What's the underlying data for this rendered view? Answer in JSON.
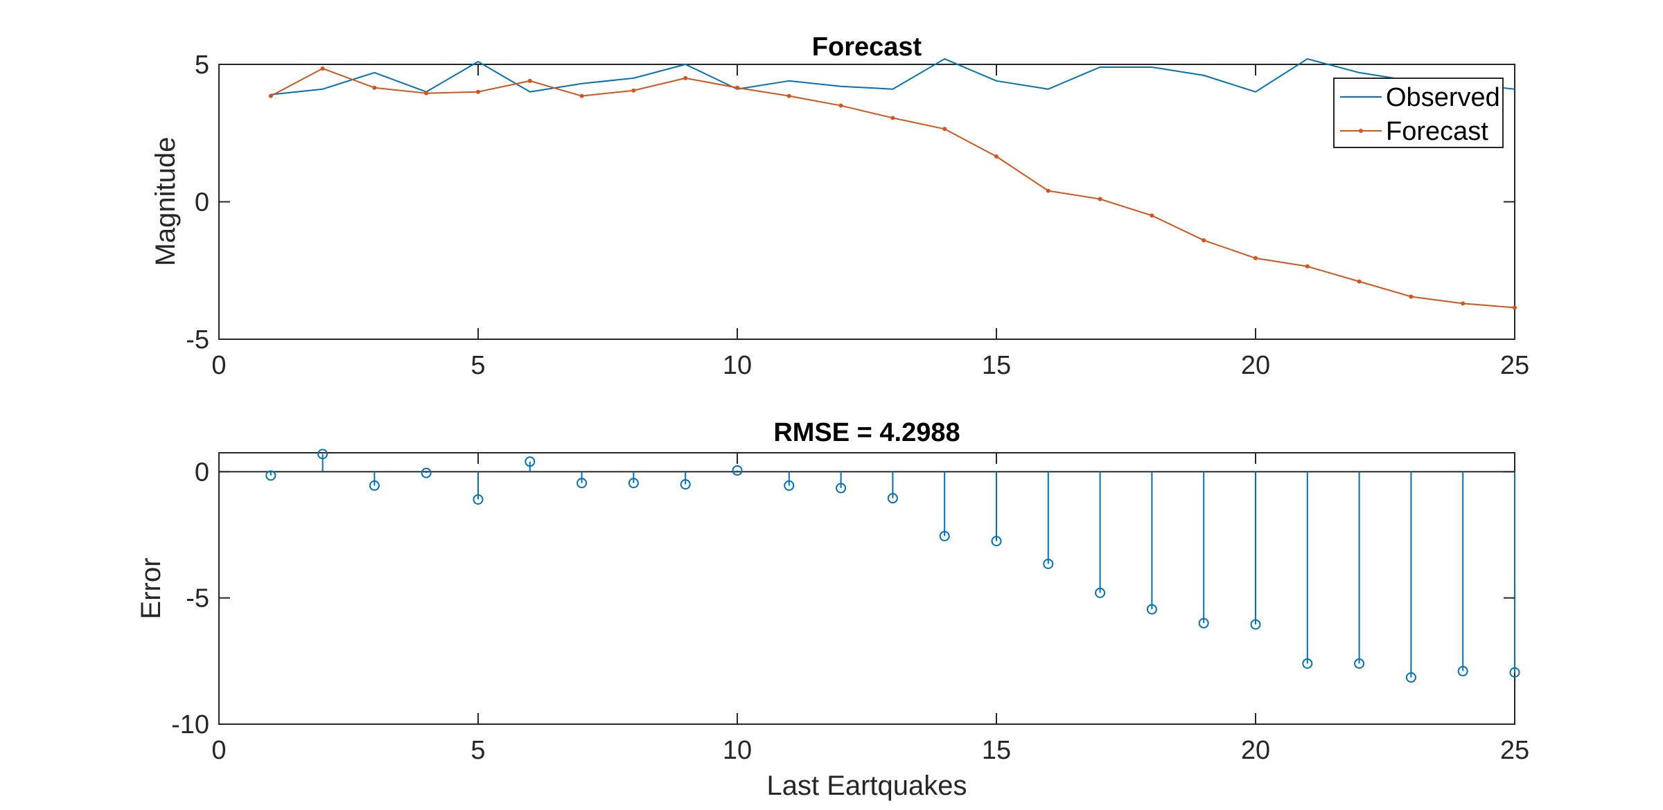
{
  "chart_data": [
    {
      "type": "line",
      "title": "Forecast",
      "xlabel": "",
      "ylabel": "Magnitude",
      "xlim": [
        0,
        25
      ],
      "ylim": [
        -5,
        5
      ],
      "xticks": [
        0,
        5,
        10,
        15,
        20,
        25
      ],
      "yticks": [
        -5,
        0,
        5
      ],
      "xtick_labels": [
        "0",
        "5",
        "10",
        "15",
        "20",
        "25"
      ],
      "ytick_labels": [
        "-5",
        "0",
        "5"
      ],
      "legend_position": "top-right",
      "x": [
        1,
        2,
        3,
        4,
        5,
        6,
        7,
        8,
        9,
        10,
        11,
        12,
        13,
        14,
        15,
        16,
        17,
        18,
        19,
        20,
        21,
        22,
        23,
        24,
        25
      ],
      "series": [
        {
          "name": "Observed",
          "color": "#0072BD",
          "marker": "none",
          "values": [
            3.9,
            4.1,
            4.7,
            4.0,
            5.1,
            4.0,
            4.3,
            4.5,
            5.0,
            4.1,
            4.4,
            4.2,
            4.1,
            5.2,
            4.4,
            4.1,
            4.9,
            4.9,
            4.6,
            4.0,
            5.2,
            4.7,
            4.4,
            4.3,
            4.1
          ]
        },
        {
          "name": "Forecast",
          "color": "#D95319",
          "marker": "dot",
          "values": [
            3.85,
            4.85,
            4.15,
            3.95,
            4.0,
            4.4,
            3.85,
            4.05,
            4.5,
            4.15,
            3.85,
            3.5,
            3.05,
            2.65,
            1.65,
            0.4,
            0.1,
            -0.5,
            -1.4,
            -2.05,
            -2.35,
            -2.9,
            -3.45,
            -3.7,
            -3.85
          ]
        }
      ]
    },
    {
      "type": "stem",
      "title": "RMSE = 4.2988",
      "xlabel": "Last Eartquakes",
      "ylabel": "Error",
      "xlim": [
        0,
        25
      ],
      "ylim": [
        -10,
        0.75
      ],
      "xticks": [
        0,
        5,
        10,
        15,
        20,
        25
      ],
      "yticks": [
        -10,
        -5,
        0
      ],
      "xtick_labels": [
        "0",
        "5",
        "10",
        "15",
        "20",
        "25"
      ],
      "ytick_labels": [
        "-10",
        "-5",
        "0"
      ],
      "x": [
        1,
        2,
        3,
        4,
        5,
        6,
        7,
        8,
        9,
        10,
        11,
        12,
        13,
        14,
        15,
        16,
        17,
        18,
        19,
        20,
        21,
        22,
        23,
        24,
        25
      ],
      "series": [
        {
          "name": "",
          "color": "#0072BD",
          "marker": "circle",
          "values": [
            -0.15,
            0.7,
            -0.55,
            -0.05,
            -1.1,
            0.4,
            -0.45,
            -0.45,
            -0.5,
            0.05,
            -0.55,
            -0.65,
            -1.05,
            -2.55,
            -2.75,
            -3.65,
            -4.8,
            -5.45,
            -6.0,
            -6.05,
            -7.6,
            -7.6,
            -8.15,
            -7.9,
            -7.95
          ]
        }
      ]
    }
  ]
}
